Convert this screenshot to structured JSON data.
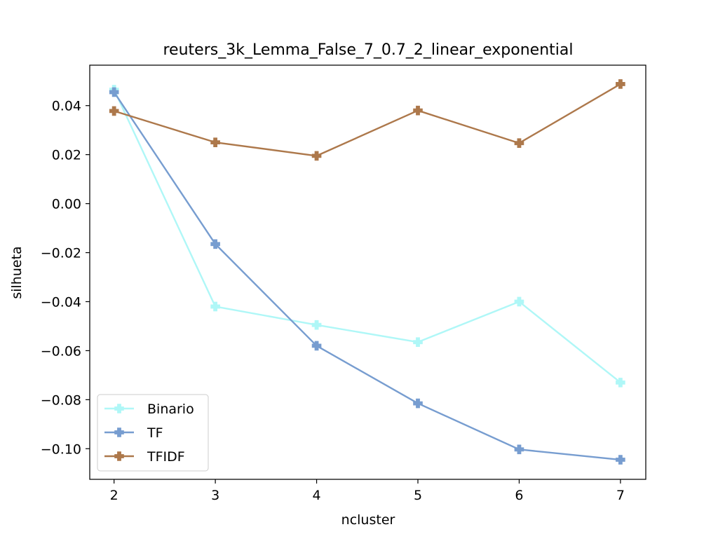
{
  "chart_data": {
    "type": "line",
    "title": "reuters_3k_Lemma_False_7_0.7_2_linear_exponential",
    "xlabel": "ncluster",
    "ylabel": "silhueta",
    "x": [
      2,
      3,
      4,
      5,
      6,
      7
    ],
    "xlim": [
      1.76,
      7.25
    ],
    "ylim": [
      -0.1125,
      0.0565
    ],
    "xticks": [
      "2",
      "3",
      "4",
      "5",
      "6",
      "7"
    ],
    "yticks": [
      0.04,
      0.02,
      0.0,
      -0.02,
      -0.04,
      -0.06,
      -0.08,
      -0.1
    ],
    "ytick_labels": [
      "0.04",
      "0.02",
      "0.00",
      "−0.02",
      "−0.04",
      "−0.06",
      "−0.08",
      "−0.10"
    ],
    "grid": false,
    "legend_position": "lower-left",
    "series": [
      {
        "name": "Binario",
        "color": "#AFF7F7",
        "marker": "plus-filled",
        "values": [
          0.0465,
          -0.042,
          -0.0495,
          -0.0565,
          -0.04,
          -0.073
        ]
      },
      {
        "name": "TF",
        "color": "#779DD0",
        "marker": "plus-filled",
        "values": [
          0.0455,
          -0.0165,
          -0.058,
          -0.0815,
          -0.1003,
          -0.1045
        ]
      },
      {
        "name": "TFIDF",
        "color": "#AD784B",
        "marker": "plus-filled",
        "values": [
          0.0378,
          0.025,
          0.0195,
          0.038,
          0.0247,
          0.0488
        ]
      }
    ]
  }
}
